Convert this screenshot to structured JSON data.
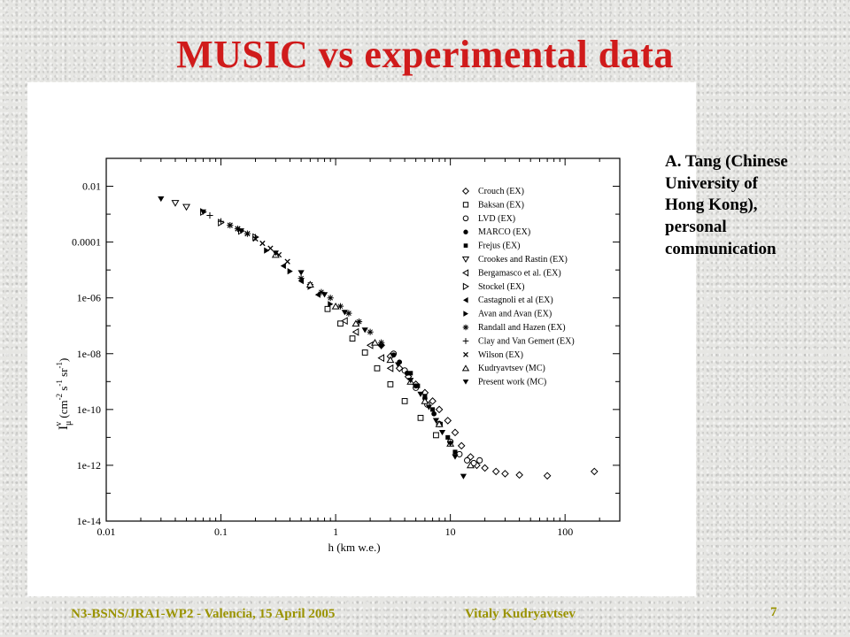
{
  "slide": {
    "title": "MUSIC vs experimental data",
    "annotation_lines": [
      "A. Tang (Chinese",
      "University of",
      "Hong Kong),",
      "personal",
      "communication"
    ],
    "footer_left": "N3-BSNS/JRA1-WP2 - Valencia, 15 April 2005",
    "footer_author": "Vitaly Kudryavtsev",
    "page_number": "7",
    "colors": {
      "title": "#d01b1b",
      "footer": "#9a9300"
    }
  },
  "chart_data": {
    "type": "scatter",
    "xscale": "log",
    "yscale": "log",
    "xlim": [
      0.01,
      300
    ],
    "ylim": [
      1e-14,
      0.1
    ],
    "x_tick_labels": [
      "0.01",
      "0.1",
      "1",
      "10",
      "100"
    ],
    "x_tick_values": [
      0.01,
      0.1,
      1,
      10,
      100
    ],
    "y_tick_labels": [
      "0.01",
      "0.0001",
      "1e-06",
      "1e-08",
      "1e-10",
      "1e-12",
      "1e-14"
    ],
    "y_tick_values": [
      0.01,
      0.0001,
      1e-06,
      1e-08,
      1e-10,
      1e-12,
      1e-14
    ],
    "xlabel": "h (km w.e.)",
    "ylabel": {
      "main": "I",
      "sub": "μ",
      "sup": "v",
      "units": "(cm",
      "units_sup1": "-2",
      "units_mid": " s",
      "units_sup2": "-1",
      "units_mid2": " sr",
      "units_sup3": "-1",
      "units_end": ")"
    },
    "legend_position": "top-right",
    "series": [
      {
        "name": "Crouch (EX)",
        "marker": "diamond-open",
        "x": [
          2.5,
          3,
          3.6,
          4.3,
          5,
          6,
          7,
          8,
          9.5,
          11,
          12.5,
          15,
          17,
          20,
          25,
          30,
          40,
          70,
          180
        ],
        "y": [
          2e-08,
          8e-09,
          3e-09,
          1.5e-09,
          8e-10,
          4e-10,
          2e-10,
          1e-10,
          4e-11,
          1.5e-11,
          5e-12,
          2e-12,
          1e-12,
          8e-13,
          6e-13,
          5e-13,
          4.5e-13,
          4.2e-13,
          6e-13
        ]
      },
      {
        "name": "Baksan (EX)",
        "marker": "square-open",
        "x": [
          0.85,
          1.1,
          1.4,
          1.8,
          2.3,
          3,
          4,
          5.5,
          7.5
        ],
        "y": [
          4e-07,
          1.2e-07,
          3.5e-08,
          1.1e-08,
          3e-09,
          8e-10,
          2e-10,
          5e-11,
          1.2e-11
        ]
      },
      {
        "name": "LVD (EX)",
        "marker": "circle-open",
        "x": [
          3.2,
          4,
          5,
          6.3,
          8,
          10,
          12,
          14,
          16,
          18
        ],
        "y": [
          1e-08,
          2.5e-09,
          6e-10,
          1.5e-10,
          3e-11,
          7e-12,
          2.5e-12,
          1.5e-12,
          1.2e-12,
          1.5e-12
        ]
      },
      {
        "name": "MARCO (EX)",
        "marker": "circle-filled",
        "x": [
          3.2,
          3.6,
          4.2,
          5,
          6,
          7.2
        ],
        "y": [
          9e-09,
          5e-09,
          2e-09,
          7e-10,
          2.5e-10,
          7e-11
        ]
      },
      {
        "name": "Frejus (EX)",
        "marker": "square-filled",
        "x": [
          4.5,
          5.2,
          6,
          7,
          8.2,
          9.5,
          11
        ],
        "y": [
          2e-09,
          7e-10,
          3e-10,
          1e-10,
          3e-11,
          1e-11,
          3e-12
        ]
      },
      {
        "name": "Crookes and Rastin (EX)",
        "marker": "triangle-down-open",
        "x": [
          0.04,
          0.05
        ],
        "y": [
          0.0025,
          0.0018
        ]
      },
      {
        "name": "Bergamasco et al. (EX)",
        "marker": "triangle-left-open",
        "x": [
          1.2,
          1.5,
          2,
          2.5,
          3
        ],
        "y": [
          1.5e-07,
          6e-08,
          2e-08,
          7e-09,
          3e-09
        ]
      },
      {
        "name": "Stockel (EX)",
        "marker": "triangle-right-open",
        "x": [
          0.07,
          0.1,
          0.15,
          0.2
        ],
        "y": [
          0.0012,
          0.0005,
          0.00025,
          0.00015
        ]
      },
      {
        "name": "Castagnoli et al (EX)",
        "marker": "triangle-left-filled",
        "x": [
          0.35,
          0.5,
          0.7
        ],
        "y": [
          1.4e-05,
          4e-06,
          1.3e-06
        ]
      },
      {
        "name": "Avan and Avan (EX)",
        "marker": "triangle-right-filled",
        "x": [
          0.25,
          0.4,
          0.6,
          0.9
        ],
        "y": [
          5e-05,
          9e-06,
          2.5e-06,
          6e-07
        ]
      },
      {
        "name": "Randall and Hazen (EX)",
        "marker": "asterisk",
        "x": [
          0.5,
          0.6,
          0.75,
          0.9,
          1.1,
          1.3,
          1.6,
          2,
          2.5
        ],
        "y": [
          5e-06,
          3e-06,
          1.6e-06,
          1e-06,
          5e-07,
          2.8e-07,
          1.4e-07,
          6e-08,
          2.5e-08
        ]
      },
      {
        "name": "Clay and Van Gemert (EX)",
        "marker": "plus",
        "x": [
          0.08,
          0.1,
          0.12,
          0.14,
          0.17,
          0.2
        ],
        "y": [
          0.0009,
          0.00055,
          0.0004,
          0.0003,
          0.0002,
          0.00015
        ]
      },
      {
        "name": "Wilson (EX)",
        "marker": "cross",
        "x": [
          0.12,
          0.14,
          0.17,
          0.2,
          0.23,
          0.27,
          0.32,
          0.38
        ],
        "y": [
          0.0004,
          0.0003,
          0.0002,
          0.00013,
          9e-05,
          6e-05,
          3.5e-05,
          2e-05
        ]
      },
      {
        "name": "Kudryavtsev (MC)",
        "marker": "triangle-up-open",
        "x": [
          0.3,
          0.6,
          1,
          1.5,
          2.2,
          3,
          4.5,
          6,
          8,
          10,
          15
        ],
        "y": [
          3.5e-05,
          3e-06,
          5e-07,
          1.2e-07,
          2.5e-08,
          6e-09,
          1e-09,
          2e-10,
          3e-11,
          6e-12,
          1e-12
        ]
      },
      {
        "name": "Present work (MC)",
        "marker": "triangle-down-filled",
        "x": [
          0.03,
          0.07,
          0.15,
          0.3,
          0.5,
          0.8,
          1.2,
          1.8,
          2.5,
          3.5,
          4.5,
          5.5,
          6.5,
          7.5,
          8.5,
          10,
          11,
          13
        ],
        "y": [
          0.0035,
          0.0012,
          0.00025,
          4e-05,
          8e-06,
          1.3e-06,
          3e-07,
          7e-08,
          1.8e-08,
          4e-09,
          1.1e-09,
          3.5e-10,
          1.2e-10,
          4e-11,
          1.5e-11,
          6e-12,
          2e-12,
          4e-13
        ]
      }
    ]
  }
}
